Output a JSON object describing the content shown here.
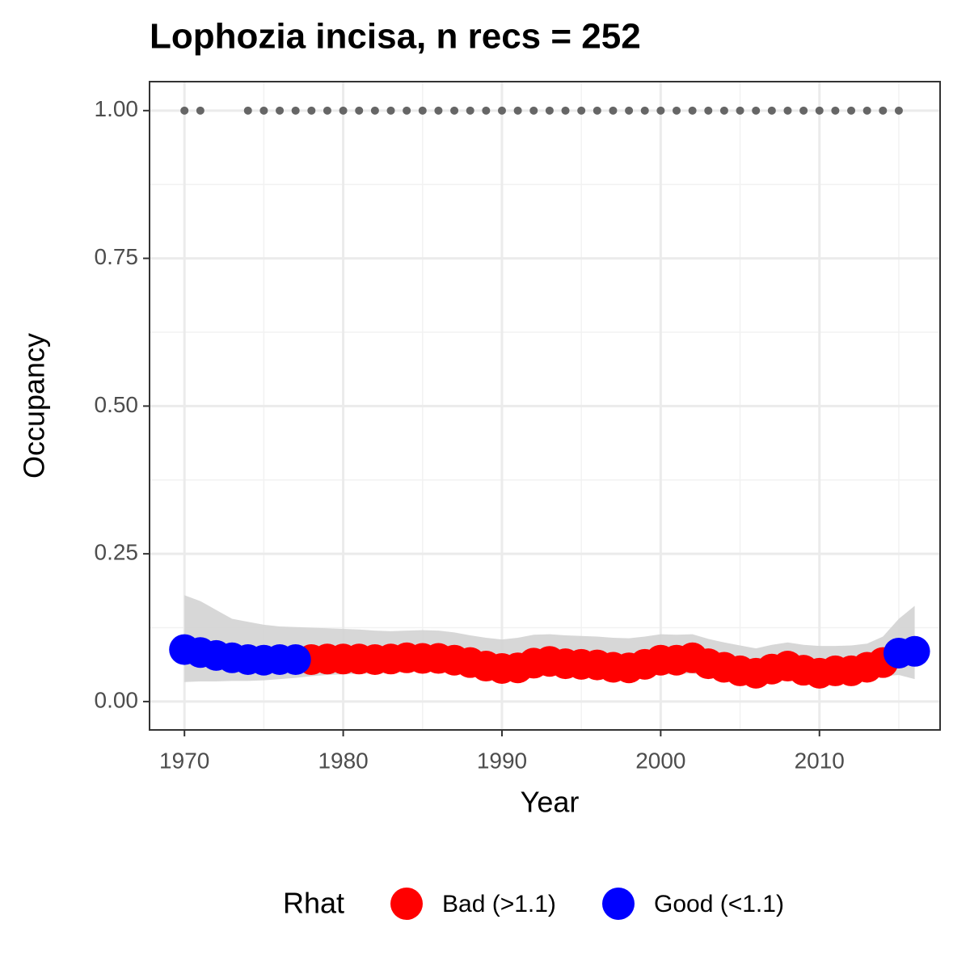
{
  "chart_data": {
    "type": "scatter",
    "title": "Lophozia incisa, n recs = 252",
    "x_label": "Year",
    "y_label": "Occupancy",
    "legend_title": "Rhat",
    "legend_position": "bottom",
    "grid": true,
    "xlim": [
      1967.8,
      2017.6
    ],
    "ylim": [
      -0.048,
      1.049
    ],
    "xticks": [
      1970,
      1980,
      1990,
      2000,
      2010
    ],
    "xminor": [
      1975,
      1985,
      1995,
      2005,
      2015
    ],
    "yticks": [
      {
        "value": 0,
        "label": "0.00"
      },
      {
        "value": 0.25,
        "label": "0.25"
      },
      {
        "value": 0.5,
        "label": "0.50"
      },
      {
        "value": 0.75,
        "label": "0.75"
      },
      {
        "value": 1,
        "label": "1.00"
      }
    ],
    "yminor": [
      0.125,
      0.375,
      0.625,
      0.875
    ],
    "x": [
      1970,
      1971,
      1972,
      1973,
      1974,
      1975,
      1976,
      1977,
      1978,
      1979,
      1980,
      1981,
      1982,
      1983,
      1984,
      1985,
      1986,
      1987,
      1988,
      1989,
      1990,
      1991,
      1992,
      1993,
      1994,
      1995,
      1996,
      1997,
      1998,
      1999,
      2000,
      2001,
      2002,
      2003,
      2004,
      2005,
      2006,
      2007,
      2008,
      2009,
      2010,
      2011,
      2012,
      2013,
      2014,
      2015,
      2016
    ],
    "ribbon": {
      "color": "#d3d3d3",
      "upper": [
        0.18,
        0.17,
        0.155,
        0.14,
        0.135,
        0.13,
        0.127,
        0.126,
        0.125,
        0.124,
        0.123,
        0.122,
        0.12,
        0.119,
        0.12,
        0.121,
        0.12,
        0.117,
        0.112,
        0.108,
        0.105,
        0.108,
        0.113,
        0.114,
        0.112,
        0.111,
        0.11,
        0.108,
        0.107,
        0.11,
        0.114,
        0.113,
        0.114,
        0.106,
        0.1,
        0.095,
        0.09,
        0.096,
        0.1,
        0.096,
        0.094,
        0.094,
        0.095,
        0.098,
        0.11,
        0.14,
        0.162
      ],
      "lower": [
        0.033,
        0.034,
        0.034,
        0.035,
        0.035,
        0.036,
        0.038,
        0.04,
        0.043,
        0.045,
        0.046,
        0.047,
        0.047,
        0.048,
        0.05,
        0.05,
        0.05,
        0.048,
        0.045,
        0.04,
        0.036,
        0.036,
        0.043,
        0.045,
        0.043,
        0.042,
        0.041,
        0.038,
        0.037,
        0.041,
        0.046,
        0.046,
        0.048,
        0.042,
        0.038,
        0.034,
        0.031,
        0.036,
        0.039,
        0.035,
        0.032,
        0.034,
        0.034,
        0.037,
        0.043,
        0.045,
        0.038
      ]
    },
    "series": [
      {
        "name": "Bad (>1.1)",
        "color": "#ff0000",
        "values": [
          null,
          null,
          null,
          null,
          null,
          null,
          null,
          null,
          0.071,
          0.072,
          0.072,
          0.072,
          0.071,
          0.072,
          0.074,
          0.073,
          0.073,
          0.07,
          0.066,
          0.06,
          0.056,
          0.057,
          0.065,
          0.068,
          0.064,
          0.063,
          0.062,
          0.058,
          0.057,
          0.063,
          0.07,
          0.07,
          0.074,
          0.064,
          0.058,
          0.052,
          0.048,
          0.055,
          0.06,
          0.053,
          0.048,
          0.052,
          0.052,
          0.058,
          0.066,
          null,
          null
        ]
      },
      {
        "name": "Good (<1.1)",
        "color": "#0000ff",
        "values": [
          0.088,
          0.083,
          0.078,
          0.074,
          0.071,
          0.07,
          0.071,
          0.071,
          null,
          null,
          null,
          null,
          null,
          null,
          null,
          null,
          null,
          null,
          null,
          null,
          null,
          null,
          null,
          null,
          null,
          null,
          null,
          null,
          null,
          null,
          null,
          null,
          null,
          null,
          null,
          null,
          null,
          null,
          null,
          null,
          null,
          null,
          null,
          null,
          null,
          0.082,
          0.085
        ]
      }
    ],
    "records": {
      "color": "#666666",
      "x": [
        1970,
        1971,
        1974,
        1975,
        1976,
        1977,
        1978,
        1979,
        1980,
        1981,
        1982,
        1983,
        1984,
        1985,
        1986,
        1987,
        1988,
        1989,
        1990,
        1991,
        1992,
        1993,
        1994,
        1995,
        1996,
        1997,
        1998,
        1999,
        2000,
        2001,
        2002,
        2003,
        2004,
        2005,
        2006,
        2007,
        2008,
        2009,
        2010,
        2011,
        2012,
        2013,
        2014,
        2015
      ],
      "values": [
        1,
        1,
        1,
        1,
        1,
        1,
        1,
        1,
        1,
        1,
        1,
        1,
        1,
        1,
        1,
        1,
        1,
        1,
        1,
        1,
        1,
        1,
        1,
        1,
        1,
        1,
        1,
        1,
        1,
        1,
        1,
        1,
        1,
        1,
        1,
        1,
        1,
        1,
        1,
        1,
        1,
        1,
        1,
        1
      ]
    }
  }
}
